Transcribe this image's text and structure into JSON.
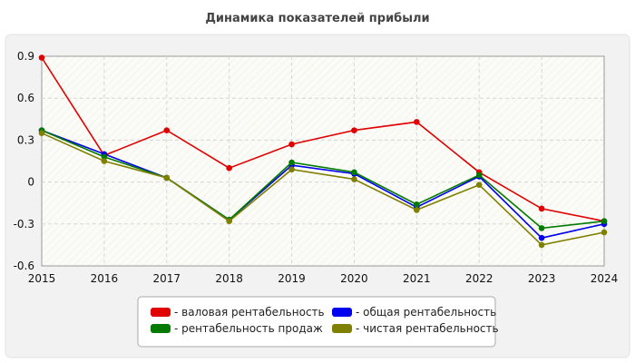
{
  "chart_data": {
    "type": "line",
    "title": "Динамика показателей прибыли",
    "xlabel": "",
    "ylabel": "",
    "categories": [
      "2015",
      "2016",
      "2017",
      "2018",
      "2019",
      "2020",
      "2021",
      "2022",
      "2023",
      "2024"
    ],
    "ylim": [
      -0.6,
      0.9
    ],
    "yticks": [
      0.9,
      0.6,
      0.3,
      0,
      -0.3,
      -0.6
    ],
    "ytick_labels": [
      "0.9",
      "0.6",
      "0.3",
      "0",
      "-0.3",
      "-0.6"
    ],
    "grid": true,
    "legend_position": "bottom-center",
    "series": [
      {
        "name": "- валовая рентабельность",
        "color": "#e00000",
        "values": [
          0.89,
          0.19,
          0.37,
          0.1,
          0.27,
          0.37,
          0.43,
          0.07,
          -0.19,
          -0.28
        ]
      },
      {
        "name": "- общая рентабельность",
        "color": "#0000ee",
        "values": [
          0.37,
          0.2,
          0.03,
          -0.27,
          0.12,
          0.06,
          -0.18,
          0.04,
          -0.4,
          -0.3
        ]
      },
      {
        "name": "- рентабельность продаж",
        "color": "#007a00",
        "values": [
          0.37,
          0.18,
          0.03,
          -0.27,
          0.14,
          0.07,
          -0.16,
          0.05,
          -0.33,
          -0.28
        ]
      },
      {
        "name": "- чистая рентабельность",
        "color": "#7f7f00",
        "values": [
          0.35,
          0.15,
          0.03,
          -0.28,
          0.09,
          0.02,
          -0.2,
          -0.02,
          -0.45,
          -0.36
        ]
      }
    ]
  }
}
